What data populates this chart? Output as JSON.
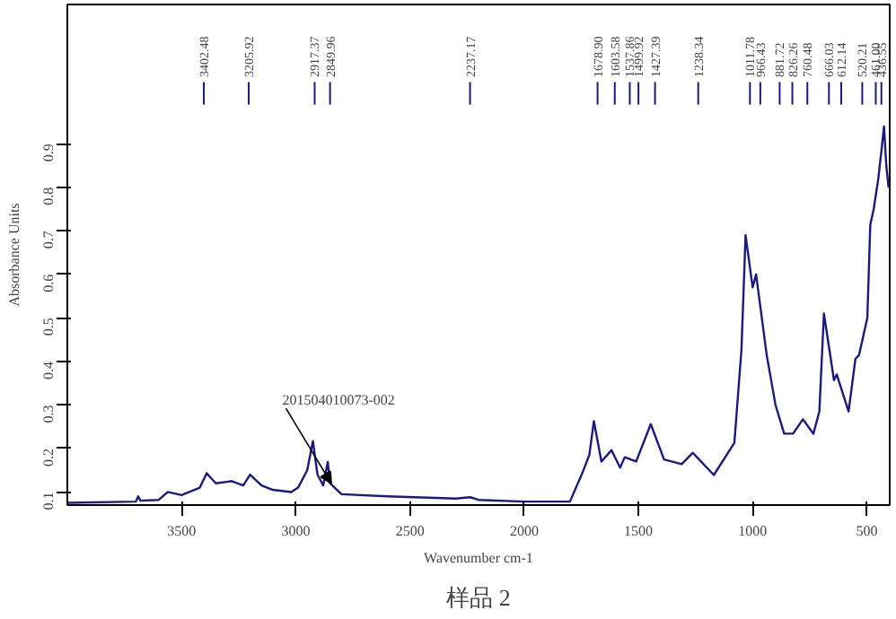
{
  "chart_data": {
    "type": "line",
    "xlabel": "Wavenumber cm-1",
    "ylabel": "Absorbance Units",
    "x": [
      4000,
      3700,
      3690,
      3680,
      3600,
      3560,
      3500,
      3420,
      3390,
      3350,
      3280,
      3230,
      3200,
      3150,
      3100,
      3020,
      2990,
      2950,
      2925,
      2905,
      2880,
      2860,
      2850,
      2800,
      2600,
      2300,
      2237,
      2200,
      2000,
      1800,
      1746,
      1715,
      1695,
      1662,
      1618,
      1580,
      1560,
      1510,
      1446,
      1388,
      1311,
      1262,
      1170,
      1080,
      1049,
      1031,
      1000,
      985,
      938,
      900,
      862,
      823,
      780,
      734,
      708,
      688,
      644,
      632,
      580,
      550,
      534,
      498,
      485,
      470,
      450,
      435,
      425,
      415,
      405
    ],
    "series": [
      {
        "color": "#1a1a80",
        "values": [
          0.075,
          0.078,
          0.09,
          0.08,
          0.082,
          0.1,
          0.093,
          0.11,
          0.143,
          0.12,
          0.125,
          0.115,
          0.14,
          0.115,
          0.105,
          0.1,
          0.11,
          0.15,
          0.217,
          0.14,
          0.115,
          0.169,
          0.12,
          0.095,
          0.09,
          0.085,
          0.088,
          0.082,
          0.078,
          0.078,
          0.143,
          0.185,
          0.263,
          0.17,
          0.196,
          0.156,
          0.18,
          0.17,
          0.256,
          0.175,
          0.164,
          0.19,
          0.139,
          0.213,
          0.427,
          0.69,
          0.57,
          0.6,
          0.413,
          0.3,
          0.234,
          0.234,
          0.267,
          0.234,
          0.285,
          0.51,
          0.357,
          0.37,
          0.285,
          0.406,
          0.415,
          0.5,
          0.714,
          0.75,
          0.82,
          0.89,
          0.94,
          0.85,
          0.8
        ]
      }
    ],
    "xlim": [
      4000,
      400
    ],
    "ylim": [
      0.07,
      1.22
    ],
    "xticks": [
      3500,
      3000,
      2500,
      2000,
      1500,
      1000,
      500
    ],
    "yticks": [
      0.1,
      0.2,
      0.3,
      0.4,
      0.5,
      0.6,
      0.7,
      0.8,
      0.9
    ],
    "grid": false,
    "marker": "none",
    "line_style": "solid",
    "ref_lines": [
      {
        "axis": "x",
        "value": 3402.48,
        "label": "3402.48"
      },
      {
        "axis": "x",
        "value": 3205.92,
        "label": "3205.92"
      },
      {
        "axis": "x",
        "value": 2917.37,
        "label": "2917.37"
      },
      {
        "axis": "x",
        "value": 2849.96,
        "label": "2849.96"
      },
      {
        "axis": "x",
        "value": 2237.17,
        "label": "2237.17"
      },
      {
        "axis": "x",
        "value": 1678.9,
        "label": "1678.90"
      },
      {
        "axis": "x",
        "value": 1603.58,
        "label": "1603.58"
      },
      {
        "axis": "x",
        "value": 1537.86,
        "label": "1537.86"
      },
      {
        "axis": "x",
        "value": 1499.92,
        "label": "1499.92"
      },
      {
        "axis": "x",
        "value": 1427.39,
        "label": "1427.39"
      },
      {
        "axis": "x",
        "value": 1238.34,
        "label": "1238.34"
      },
      {
        "axis": "x",
        "value": 1011.78,
        "label": "1011.78"
      },
      {
        "axis": "x",
        "value": 966.43,
        "label": "966.43"
      },
      {
        "axis": "x",
        "value": 881.72,
        "label": "881.72"
      },
      {
        "axis": "x",
        "value": 826.26,
        "label": "826.26"
      },
      {
        "axis": "x",
        "value": 760.48,
        "label": "760.48"
      },
      {
        "axis": "x",
        "value": 666.03,
        "label": "666.03"
      },
      {
        "axis": "x",
        "value": 612.14,
        "label": "612.14"
      },
      {
        "axis": "x",
        "value": 520.21,
        "label": "520.21"
      },
      {
        "axis": "x",
        "value": 461.0,
        "label": "461.00"
      },
      {
        "axis": "x",
        "value": 436.55,
        "label": "436.55"
      }
    ],
    "annotations": [
      {
        "text": "201504010073-002",
        "x": 2845,
        "y": 0.12
      },
      "样品 2"
    ]
  }
}
